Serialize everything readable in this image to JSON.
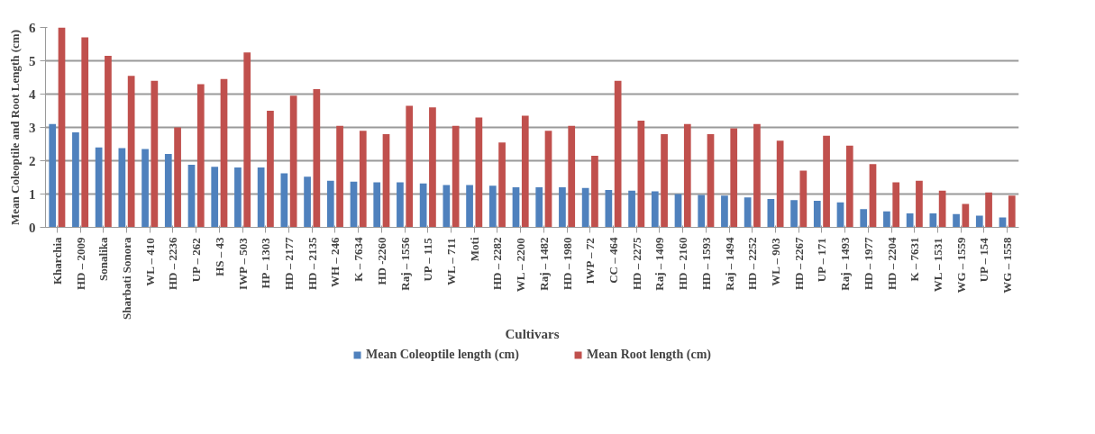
{
  "chart_data": {
    "type": "bar",
    "xlabel": "Cultivars",
    "ylabel": "Mean Coleoptile and Root Length (cm)",
    "categories": [
      "Kharchia",
      "HD – 2009",
      "Sonalika",
      "Sharbati Sonora",
      "WL – 410",
      "HD – 2236",
      "UP – 262",
      "HS – 43",
      "IWP – 503",
      "HP – 1303",
      "HD – 2177",
      "HD – 2135",
      "WH – 246",
      "K – 7634",
      "HD -2260",
      "Raj – 1556",
      "UP – 115",
      "WL – 711",
      "Moti",
      "HD – 2282",
      "WL – 2200",
      "Raj – 1482",
      "HD – 1980",
      "IWP – 72",
      "CC – 464",
      "HD – 2275",
      "Raj – 1409",
      "HD – 2160",
      "HD – 1593",
      "Raj – 1494",
      "HD – 2252",
      "WL – 903",
      "HD – 2267",
      "UP – 171",
      "Raj – 1493",
      "HD – 1977",
      "HD – 2204",
      "K – 7631",
      "WL – 1531",
      "WG – 1559",
      "UP – 154",
      "WG – 1558"
    ],
    "series": [
      {
        "name": "Mean Coleoptile length (cm)",
        "color": "#4f81bd",
        "values": [
          3.1,
          2.85,
          2.4,
          2.38,
          2.35,
          2.2,
          1.88,
          1.82,
          1.8,
          1.8,
          1.62,
          1.52,
          1.4,
          1.37,
          1.35,
          1.35,
          1.32,
          1.27,
          1.27,
          1.25,
          1.2,
          1.2,
          1.2,
          1.18,
          1.12,
          1.1,
          1.08,
          1.0,
          0.97,
          0.95,
          0.9,
          0.85,
          0.82,
          0.8,
          0.75,
          0.55,
          0.48,
          0.42,
          0.42,
          0.4,
          0.35,
          0.3
        ]
      },
      {
        "name": "Mean Root length (cm)",
        "color": "#c0504d",
        "values": [
          6.0,
          5.7,
          5.15,
          4.55,
          4.4,
          3.0,
          4.3,
          4.45,
          5.25,
          3.5,
          3.95,
          4.15,
          3.05,
          2.9,
          2.8,
          3.65,
          3.6,
          3.05,
          3.3,
          2.55,
          3.35,
          2.9,
          3.05,
          2.15,
          4.4,
          3.2,
          2.8,
          3.1,
          2.8,
          2.97,
          3.1,
          2.6,
          1.7,
          2.75,
          2.45,
          1.9,
          1.35,
          1.4,
          1.1,
          0.7,
          1.05,
          0.95
        ]
      }
    ],
    "ylim": [
      0,
      6
    ],
    "yticks": [
      0,
      1,
      2,
      3,
      4,
      5,
      6
    ],
    "grid": "y",
    "legend": "bottom"
  }
}
